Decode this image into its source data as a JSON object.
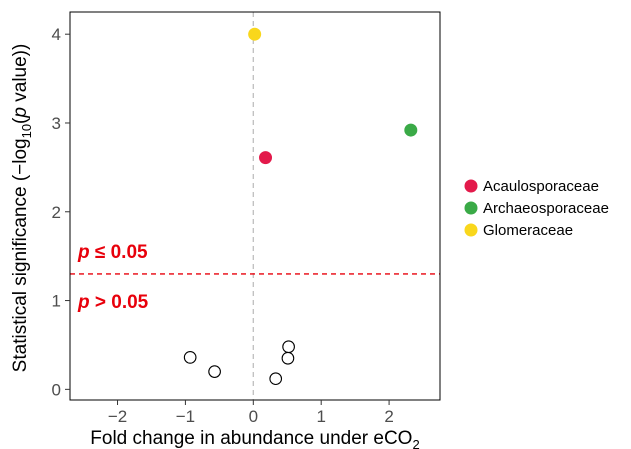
{
  "chart_data": {
    "type": "scatter",
    "xlabel": "Fold change in abundance under eCO",
    "xlabel_sub": "2",
    "ylabel_pre": "Statistical significance (−log",
    "ylabel_sub": "10",
    "ylabel_mid": "(",
    "ylabel_p": "p",
    "ylabel_post": " value))",
    "xlim": [
      -2.7,
      2.75
    ],
    "ylim": [
      -0.12,
      4.25
    ],
    "x_ticks": [
      -2,
      -1,
      0,
      1,
      2
    ],
    "x_tick_labels": [
      "−2",
      "−1",
      "0",
      "1",
      "2"
    ],
    "y_ticks": [
      0,
      1,
      2,
      3,
      4
    ],
    "y_tick_labels": [
      "0",
      "1",
      "2",
      "3",
      "4"
    ],
    "threshold_y": 1.3,
    "vline_x": 0,
    "annotations": {
      "above": "p ≤ 0.05",
      "above_p": "p",
      "above_rest": " ≤ 0.05",
      "below_p": "p",
      "below_rest": " > 0.05"
    },
    "grid": false,
    "legend_placement": "right",
    "series": [
      {
        "name": "Acaulosporaceae",
        "color": "#e31a4b",
        "points": [
          [
            0.18,
            2.61
          ]
        ]
      },
      {
        "name": "Archaeosporaceae",
        "color": "#3aaa47",
        "points": [
          [
            2.32,
            2.92
          ]
        ]
      },
      {
        "name": "Glomeraceae",
        "color": "#f9d71c",
        "points": [
          [
            0.02,
            4.0
          ]
        ]
      },
      {
        "name": "",
        "color": "none",
        "points": [
          [
            -0.93,
            0.36
          ],
          [
            -0.57,
            0.2
          ],
          [
            0.52,
            0.48
          ],
          [
            0.51,
            0.35
          ],
          [
            0.33,
            0.12
          ]
        ]
      }
    ],
    "colors": {
      "threshold": "#e8000b",
      "vline": "#bfbfbf",
      "annot": "#e8000b"
    }
  }
}
